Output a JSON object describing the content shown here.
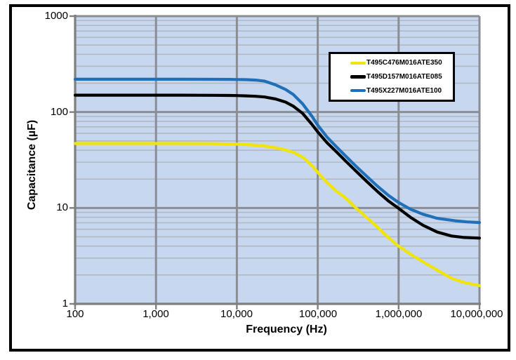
{
  "chart_data": {
    "type": "line",
    "title": "",
    "xlabel": "Frequency (Hz)",
    "ylabel": "Capacitance (µF)",
    "x_scale": "log",
    "y_scale": "log",
    "xlim": [
      100,
      10000000
    ],
    "ylim": [
      1,
      1000
    ],
    "x_tick_labels": [
      "100",
      "1,000",
      "10,000",
      "100,000",
      "1,000,000",
      "10,000,000"
    ],
    "y_tick_labels": [
      "1000",
      "100",
      "10",
      "1"
    ],
    "grid": {
      "plot_bg": "#C7D7EF",
      "major_color": "#8A8E94",
      "minor_color": "#B2B8C1",
      "axis_color": "#7F7F7F",
      "minor_horizontal": true,
      "major_vertical_only": true
    },
    "legend": {
      "position": "top-right-inside",
      "border_color": "#000000",
      "background": "#FFFFFF"
    },
    "series": [
      {
        "name": "T495C476M016ATE350",
        "color": "#F0E40A",
        "flat_value_uF": 47,
        "points": [
          [
            100,
            47
          ],
          [
            200,
            47
          ],
          [
            500,
            47
          ],
          [
            1000,
            47
          ],
          [
            2000,
            47
          ],
          [
            5000,
            46.8
          ],
          [
            8000,
            46.5
          ],
          [
            10000,
            46.3
          ],
          [
            13000,
            45.8
          ],
          [
            17000,
            45.1
          ],
          [
            22000,
            44.2
          ],
          [
            30000,
            42.5
          ],
          [
            40000,
            40.3
          ],
          [
            50000,
            38
          ],
          [
            65000,
            34
          ],
          [
            85000,
            27.5
          ],
          [
            100000,
            23.5
          ],
          [
            130000,
            18.5
          ],
          [
            170000,
            15
          ],
          [
            220000,
            12.8
          ],
          [
            300000,
            9.9
          ],
          [
            400000,
            8
          ],
          [
            550000,
            6.3
          ],
          [
            750000,
            4.9
          ],
          [
            1000000,
            4
          ],
          [
            1400000,
            3.3
          ],
          [
            2000000,
            2.75
          ],
          [
            3000000,
            2.25
          ],
          [
            4500000,
            1.85
          ],
          [
            6500000,
            1.67
          ],
          [
            10000000,
            1.55
          ]
        ]
      },
      {
        "name": "T495D157M016ATE085",
        "color": "#000000",
        "flat_value_uF": 150,
        "points": [
          [
            100,
            150
          ],
          [
            200,
            150
          ],
          [
            500,
            150
          ],
          [
            1000,
            150
          ],
          [
            2000,
            150
          ],
          [
            5000,
            149.5
          ],
          [
            8000,
            149
          ],
          [
            10000,
            148.5
          ],
          [
            13000,
            147.5
          ],
          [
            17000,
            146
          ],
          [
            22000,
            143.5
          ],
          [
            30000,
            137
          ],
          [
            40000,
            127
          ],
          [
            50000,
            115
          ],
          [
            65000,
            97
          ],
          [
            85000,
            74
          ],
          [
            100000,
            62
          ],
          [
            130000,
            48
          ],
          [
            170000,
            38.5
          ],
          [
            220000,
            31
          ],
          [
            300000,
            24
          ],
          [
            400000,
            19
          ],
          [
            550000,
            14.8
          ],
          [
            750000,
            11.8
          ],
          [
            1000000,
            9.9
          ],
          [
            1400000,
            8
          ],
          [
            2000000,
            6.6
          ],
          [
            3000000,
            5.6
          ],
          [
            4500000,
            5.1
          ],
          [
            6500000,
            4.92
          ],
          [
            10000000,
            4.85
          ]
        ]
      },
      {
        "name": "T495X227M016ATE100",
        "color": "#1F70B8",
        "flat_value_uF": 220,
        "points": [
          [
            100,
            220
          ],
          [
            200,
            220
          ],
          [
            500,
            220
          ],
          [
            1000,
            220
          ],
          [
            2000,
            220
          ],
          [
            5000,
            219.5
          ],
          [
            8000,
            219
          ],
          [
            10000,
            218.5
          ],
          [
            13000,
            217.5
          ],
          [
            17000,
            215.5
          ],
          [
            22000,
            210
          ],
          [
            30000,
            192
          ],
          [
            40000,
            172
          ],
          [
            50000,
            152
          ],
          [
            65000,
            122
          ],
          [
            85000,
            90
          ],
          [
            100000,
            73
          ],
          [
            130000,
            55
          ],
          [
            170000,
            43.5
          ],
          [
            220000,
            35
          ],
          [
            300000,
            27
          ],
          [
            400000,
            21.5
          ],
          [
            550000,
            16.8
          ],
          [
            750000,
            13.5
          ],
          [
            1000000,
            11.4
          ],
          [
            1400000,
            9.7
          ],
          [
            2000000,
            8.6
          ],
          [
            3000000,
            7.8
          ],
          [
            5000000,
            7.35
          ],
          [
            7000000,
            7.15
          ],
          [
            10000000,
            7.05
          ]
        ]
      }
    ]
  }
}
